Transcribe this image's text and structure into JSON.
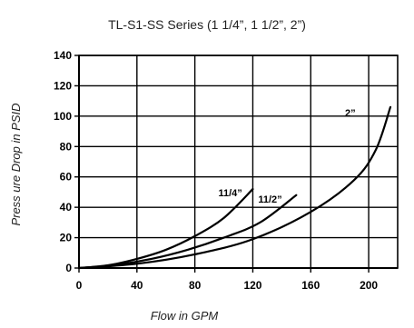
{
  "chart_data": {
    "type": "line",
    "title": "TL-S1-SS Series (1 1/4”, 1 1/2”, 2”)",
    "xlabel": "Flow in GPM",
    "ylabel": "Press ure Drop in PSID",
    "xlim": [
      0,
      220
    ],
    "ylim": [
      0,
      140
    ],
    "x_ticks": [
      0,
      40,
      80,
      120,
      160,
      200
    ],
    "y_ticks": [
      0,
      20,
      40,
      60,
      80,
      100,
      120,
      140
    ],
    "grid": true,
    "legend": "none",
    "series": [
      {
        "name": "1 1/4”",
        "label": "11/4”",
        "points": [
          [
            0,
            0
          ],
          [
            20,
            1.8
          ],
          [
            40,
            6
          ],
          [
            60,
            12
          ],
          [
            80,
            21
          ],
          [
            100,
            33
          ],
          [
            120,
            52
          ]
        ]
      },
      {
        "name": "1 1/2”",
        "label": "11/2”",
        "points": [
          [
            0,
            0
          ],
          [
            25,
            2
          ],
          [
            50,
            6
          ],
          [
            75,
            12
          ],
          [
            100,
            20
          ],
          [
            125,
            30
          ],
          [
            150,
            48
          ]
        ]
      },
      {
        "name": "2”",
        "label": "2”",
        "points": [
          [
            0,
            0
          ],
          [
            40,
            2.8
          ],
          [
            80,
            9
          ],
          [
            120,
            19
          ],
          [
            160,
            37
          ],
          [
            190,
            58
          ],
          [
            205,
            78
          ],
          [
            215,
            106
          ]
        ]
      }
    ]
  }
}
